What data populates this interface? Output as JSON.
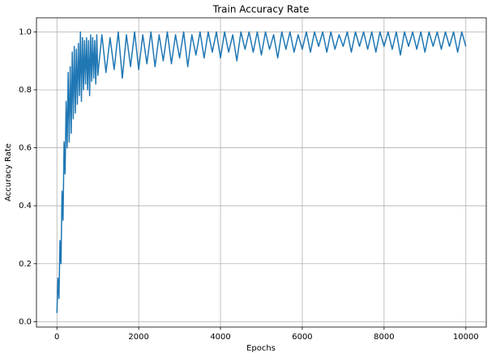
{
  "chart_data": {
    "type": "line",
    "title": "Train Accuracy Rate",
    "x_label": "Epochs",
    "y_label": "Accuracy Rate",
    "color": "#1f77b4",
    "grid": true,
    "xlim": [
      -500,
      10500
    ],
    "ylim": [
      -0.0185,
      1.0485
    ],
    "xticks": [
      0,
      2000,
      4000,
      6000,
      8000,
      10000
    ],
    "yticks": [
      {
        "value": 0,
        "label": "0.0"
      },
      {
        "value": 0.2,
        "label": "0.2"
      },
      {
        "value": 0.4,
        "label": "0.4"
      },
      {
        "value": 0.6,
        "label": "0.6"
      },
      {
        "value": 0.8,
        "label": "0.8"
      },
      {
        "value": 1,
        "label": "1.0"
      }
    ],
    "x": [
      0,
      25,
      50,
      75,
      100,
      125,
      150,
      175,
      200,
      225,
      250,
      275,
      300,
      325,
      350,
      375,
      400,
      425,
      450,
      475,
      500,
      525,
      550,
      575,
      600,
      625,
      650,
      675,
      700,
      725,
      750,
      775,
      800,
      825,
      850,
      875,
      900,
      925,
      950,
      975,
      1000,
      1100,
      1200,
      1300,
      1400,
      1500,
      1600,
      1700,
      1800,
      1900,
      2000,
      2100,
      2200,
      2300,
      2400,
      2500,
      2600,
      2700,
      2800,
      2900,
      3000,
      3100,
      3200,
      3300,
      3400,
      3500,
      3600,
      3700,
      3800,
      3900,
      4000,
      4100,
      4200,
      4300,
      4400,
      4500,
      4600,
      4700,
      4800,
      4900,
      5000,
      5100,
      5200,
      5300,
      5400,
      5500,
      5600,
      5700,
      5800,
      5900,
      6000,
      6100,
      6200,
      6300,
      6400,
      6500,
      6600,
      6700,
      6800,
      6900,
      7000,
      7100,
      7200,
      7300,
      7400,
      7500,
      7600,
      7700,
      7800,
      7900,
      8000,
      8100,
      8200,
      8300,
      8400,
      8500,
      8600,
      8700,
      8800,
      8900,
      9000,
      9100,
      9200,
      9300,
      9400,
      9500,
      9600,
      9700,
      9800,
      9900,
      10000
    ],
    "values": [
      0.03,
      0.15,
      0.08,
      0.28,
      0.2,
      0.45,
      0.35,
      0.62,
      0.51,
      0.76,
      0.6,
      0.86,
      0.62,
      0.88,
      0.65,
      0.93,
      0.7,
      0.95,
      0.72,
      0.94,
      0.75,
      0.96,
      0.78,
      1.0,
      0.76,
      0.98,
      0.8,
      0.97,
      0.82,
      0.98,
      0.8,
      0.97,
      0.78,
      0.99,
      0.83,
      0.98,
      0.84,
      0.97,
      0.82,
      0.99,
      0.85,
      0.99,
      0.86,
      0.98,
      0.87,
      1.0,
      0.84,
      0.99,
      0.88,
      1.0,
      0.87,
      0.99,
      0.89,
      1.0,
      0.88,
      0.99,
      0.9,
      1.0,
      0.89,
      0.99,
      0.91,
      1.0,
      0.88,
      0.99,
      0.92,
      1.0,
      0.91,
      1.0,
      0.93,
      1.0,
      0.91,
      1.0,
      0.93,
      0.99,
      0.9,
      1.0,
      0.94,
      1.0,
      0.93,
      1.0,
      0.92,
      1.0,
      0.94,
      0.99,
      0.91,
      1.0,
      0.94,
      1.0,
      0.93,
      0.99,
      0.94,
      1.0,
      0.93,
      1.0,
      0.95,
      1.0,
      0.93,
      1.0,
      0.94,
      0.99,
      0.95,
      1.0,
      0.93,
      1.0,
      0.95,
      1.0,
      0.94,
      1.0,
      0.93,
      1.0,
      0.95,
      1.0,
      0.94,
      1.0,
      0.92,
      1.0,
      0.95,
      1.0,
      0.94,
      1.0,
      0.93,
      1.0,
      0.95,
      1.0,
      0.94,
      1.0,
      0.95,
      1.0,
      0.93,
      1.0,
      0.95
    ]
  }
}
